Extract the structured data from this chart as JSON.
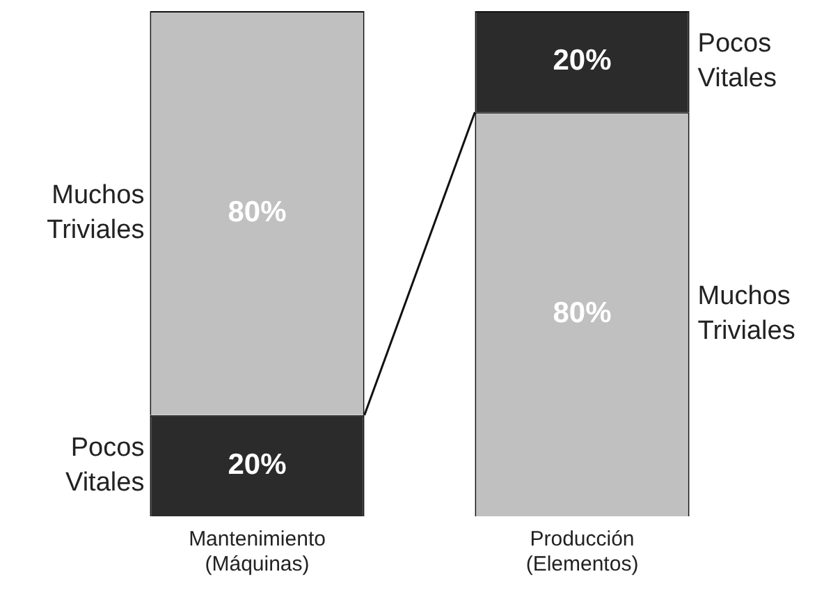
{
  "chart_data": {
    "type": "bar",
    "stacked": true,
    "categories": [
      "Mantenimiento (Máquinas)",
      "Producción (Elementos)"
    ],
    "series": [
      {
        "colors": [
          "#2b2b2b",
          "#c0c0c0"
        ],
        "values": [
          20,
          80
        ],
        "value_labels": [
          "20%",
          "80%"
        ]
      },
      {
        "colors": [
          "#c0c0c0",
          "#2b2b2b"
        ],
        "values": [
          80,
          20
        ],
        "value_labels": [
          "80%",
          "20%"
        ]
      }
    ],
    "annotations": [
      "Muchos Triviales",
      "Pocos Vitales",
      "Pocos Vitales",
      "Muchos Triviales"
    ],
    "legend": false,
    "tick_labels": "x"
  }
}
